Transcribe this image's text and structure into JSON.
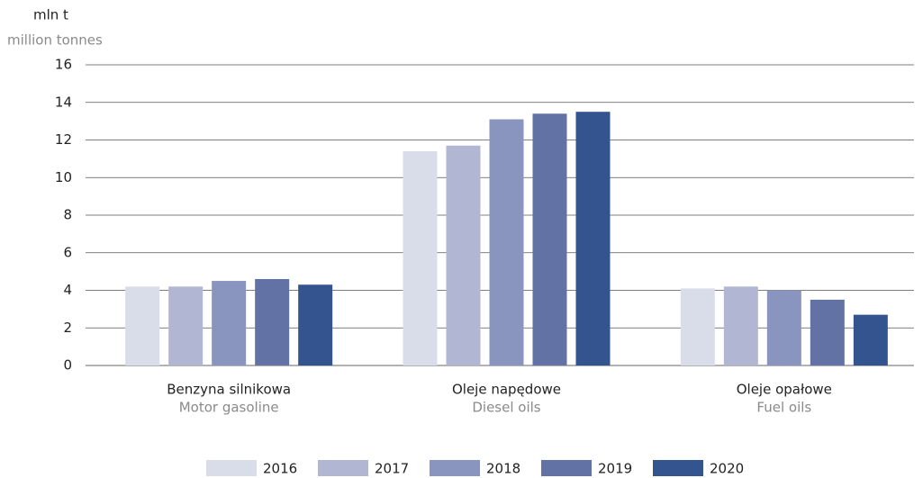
{
  "chart_data": {
    "type": "bar",
    "y_label": "mln t",
    "y_label_en": "million tonnes",
    "categories": [
      "Benzyna silnikowa",
      "Oleje napędowe",
      "Oleje opałowe"
    ],
    "categories_en": [
      "Motor gasoline",
      "Diesel oils",
      "Fuel oils"
    ],
    "series": [
      {
        "name": "2016",
        "color": "#d9dce9",
        "values": [
          4.2,
          11.4,
          4.1
        ]
      },
      {
        "name": "2017",
        "color": "#b1b6d3",
        "values": [
          4.2,
          11.7,
          4.2
        ]
      },
      {
        "name": "2018",
        "color": "#8a95bf",
        "values": [
          4.5,
          13.1,
          4.0
        ]
      },
      {
        "name": "2019",
        "color": "#6372a5",
        "values": [
          4.6,
          13.4,
          3.5
        ]
      },
      {
        "name": "2020",
        "color": "#33548e",
        "values": [
          4.3,
          13.5,
          2.7
        ]
      }
    ],
    "ylim": [
      0,
      16
    ],
    "yticks": [
      0,
      2,
      4,
      6,
      8,
      10,
      12,
      14,
      16
    ],
    "grid": true,
    "legend": "bottom"
  }
}
